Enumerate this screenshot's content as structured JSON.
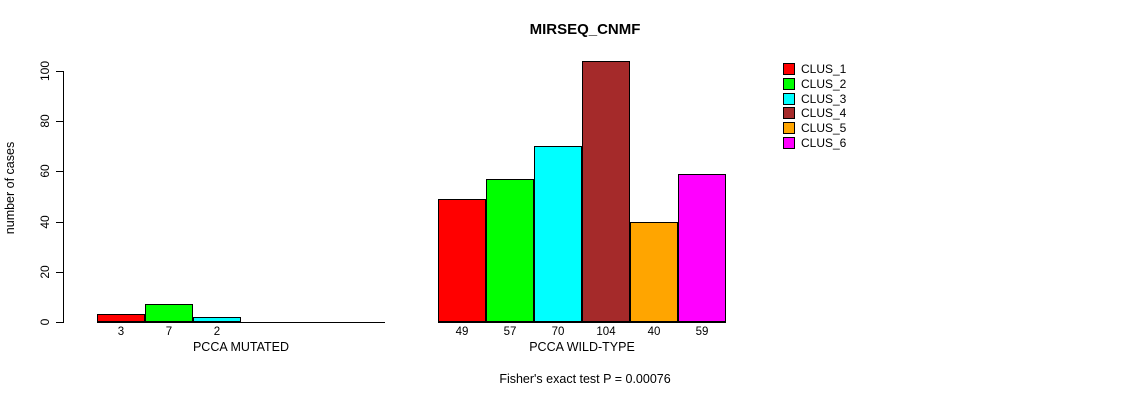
{
  "figure": {
    "title": "MIRSEQ_CNMF",
    "y_axis_label": "number of cases",
    "annotation": "Fisher's exact test P = 0.00076"
  },
  "chart_data": {
    "type": "bar",
    "title": "MIRSEQ_CNMF",
    "xlabel": "",
    "ylabel": "number of cases",
    "ylim": [
      0,
      100
    ],
    "yticks": [
      0,
      20,
      40,
      60,
      80,
      100
    ],
    "grid": false,
    "legend_position": "right",
    "series": [
      {
        "name": "CLUS_1",
        "color": "#FF0000"
      },
      {
        "name": "CLUS_2",
        "color": "#00FF00"
      },
      {
        "name": "CLUS_3",
        "color": "#00FFFF"
      },
      {
        "name": "CLUS_4",
        "color": "#A52A2A"
      },
      {
        "name": "CLUS_5",
        "color": "#FFA500"
      },
      {
        "name": "CLUS_6",
        "color": "#FF00FF"
      }
    ],
    "groups": [
      {
        "label": "PCCA MUTATED",
        "values": [
          3,
          7,
          2,
          0,
          0,
          0
        ]
      },
      {
        "label": "PCCA WILD-TYPE",
        "values": [
          49,
          57,
          70,
          104,
          40,
          59
        ]
      }
    ],
    "annotation": "Fisher's exact test P = 0.00076"
  }
}
